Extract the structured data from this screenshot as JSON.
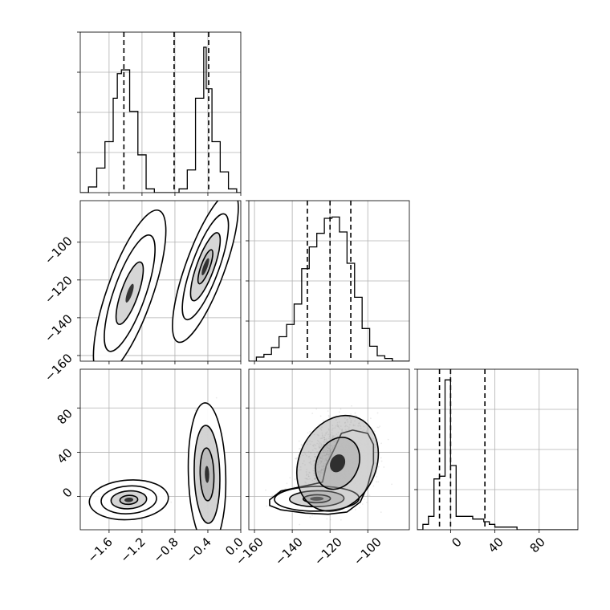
{
  "chart_data": {
    "type": "corner",
    "colors": {
      "line": "#000000",
      "grid": "#b0b0b0",
      "scatter": "#555555",
      "contour_fill": "#999999",
      "background": "#ffffff"
    },
    "grid": true,
    "params": [
      {
        "range": [
          -1.95,
          0.0
        ],
        "ticks": [
          -1.6,
          -1.2,
          -0.8,
          -0.4,
          0.0
        ],
        "tick_labels": [
          "−1.6",
          "−1.2",
          "−0.8",
          "−0.4",
          "0.0"
        ],
        "quantiles": [
          -1.42,
          -0.81,
          -0.39
        ],
        "hist": {
          "edges": [
            -1.95,
            -1.85,
            -1.75,
            -1.65,
            -1.55,
            -1.5,
            -1.45,
            -1.35,
            -1.25,
            -1.15,
            -1.05,
            -0.95,
            -0.85,
            -0.75,
            -0.65,
            -0.55,
            -0.45,
            -0.42,
            -0.35,
            -0.25,
            -0.15,
            -0.05,
            0.0
          ],
          "counts": [
            0,
            0.03,
            0.13,
            0.27,
            0.5,
            0.63,
            0.65,
            0.43,
            0.2,
            0.02,
            0,
            0,
            0,
            0.02,
            0.12,
            0.5,
            0.77,
            0.55,
            0.27,
            0.11,
            0.02,
            0
          ]
        }
      },
      {
        "range": [
          -163,
          -78
        ],
        "ticks": [
          -160,
          -140,
          -120,
          -100
        ],
        "tick_labels": [
          "−160",
          "−140",
          "−120",
          "−100"
        ],
        "quantiles": [
          -132,
          -120,
          -109
        ],
        "hist": {
          "edges": [
            -163,
            -159,
            -155,
            -151,
            -147,
            -143,
            -139,
            -135,
            -131,
            -127,
            -123,
            -119,
            -115,
            -111,
            -107,
            -103,
            -99,
            -95,
            -91,
            -87,
            -83,
            -79,
            -78
          ],
          "counts": [
            0,
            0.03,
            0.05,
            0.1,
            0.18,
            0.27,
            0.42,
            0.68,
            0.84,
            0.94,
            1.05,
            1.06,
            0.95,
            0.72,
            0.47,
            0.24,
            0.11,
            0.04,
            0.02,
            0,
            0,
            0
          ]
        }
      },
      {
        "range": [
          -30,
          115
        ],
        "ticks": [
          0,
          40,
          80
        ],
        "tick_labels": [
          "0",
          "40",
          "80"
        ],
        "quantiles": [
          -10,
          0,
          31
        ],
        "hist": {
          "edges": [
            -30,
            -25,
            -20,
            -15,
            -10,
            -5,
            0,
            5,
            10,
            15,
            20,
            25,
            30,
            35,
            40,
            45,
            50,
            55,
            60,
            65,
            70,
            75,
            80,
            85,
            115
          ],
          "counts": [
            0,
            0.02,
            0.05,
            0.19,
            0.2,
            0.56,
            0.24,
            0.05,
            0.05,
            0.05,
            0.04,
            0.04,
            0.03,
            0.02,
            0.01,
            0.01,
            0.01,
            0.01,
            0,
            0,
            0,
            0,
            0,
            0
          ]
        }
      }
    ],
    "marginal_ylims": [
      0.85,
      1.18,
      0.6
    ],
    "clusters": {
      "p0_p1": [
        {
          "cx": -1.35,
          "cy": -127,
          "sx": 0.11,
          "sy": 11,
          "rho": 0.75,
          "n": 1400,
          "levels": [
            [
              1.5,
              15,
              0.5
            ],
            [
              2.8,
              20,
              0.85
            ],
            [
              4.0,
              20,
              1.15
            ]
          ]
        },
        {
          "cx": -0.43,
          "cy": -113,
          "sx": 0.1,
          "sy": 10,
          "rho": 0.78,
          "n": 1600,
          "levels": [
            [
              0.9,
              10,
              0.25
            ],
            [
              1.8,
              15,
              0.6
            ],
            [
              2.8,
              20,
              0.85
            ],
            [
              4.0,
              20,
              1.15
            ]
          ]
        }
      ],
      "p0_p2": [
        {
          "cx": -1.36,
          "cy": -3,
          "sx": 0.12,
          "sy": 4.5,
          "rho": 0.1,
          "n": 1500,
          "levels": [
            [
              0.9,
              10,
              0.3
            ],
            [
              1.8,
              15,
              0.6
            ],
            [
              2.8,
              20,
              0.85
            ],
            [
              4.0,
              20,
              1.15
            ]
          ]
        },
        {
          "cx": -0.41,
          "cy": 20,
          "sx": 0.06,
          "sy": 17,
          "rho": -0.1,
          "n": 1500,
          "levels": [
            [
              1.4,
              12,
              0.4
            ],
            [
              2.6,
              18,
              0.7
            ],
            [
              3.8,
              20,
              1.05
            ]
          ]
        }
      ],
      "p1_p2": [
        {
          "cx": -127,
          "cy": -2,
          "sx": 8,
          "sy": 4,
          "rho": 0.05,
          "n": 2200,
          "levels": [
            [
              0.9,
              10,
              0.3
            ],
            [
              1.8,
              15,
              0.6
            ],
            [
              2.8,
              20,
              0.85
            ]
          ]
        },
        {
          "cx": -116,
          "cy": 30,
          "sx": 9,
          "sy": 18,
          "rho": 0.2,
          "n": 1400,
          "levels": [
            [
              1.3,
              14,
              0.45
            ],
            [
              2.4,
              18,
              0.75
            ]
          ]
        }
      ]
    },
    "outer_contours": {
      "p1_p2": [
        [
          -152,
          -8
        ],
        [
          -152,
          -3
        ],
        [
          -146,
          5
        ],
        [
          -132,
          10
        ],
        [
          -124,
          13
        ],
        [
          -122,
          28
        ],
        [
          -118,
          42
        ],
        [
          -114,
          57
        ],
        [
          -108,
          60
        ],
        [
          -100,
          57
        ],
        [
          -97,
          47
        ],
        [
          -97,
          30
        ],
        [
          -100,
          10
        ],
        [
          -104,
          -5
        ],
        [
          -111,
          -14
        ],
        [
          -121,
          -16
        ],
        [
          -133,
          -15
        ],
        [
          -146,
          -12
        ]
      ]
    }
  }
}
